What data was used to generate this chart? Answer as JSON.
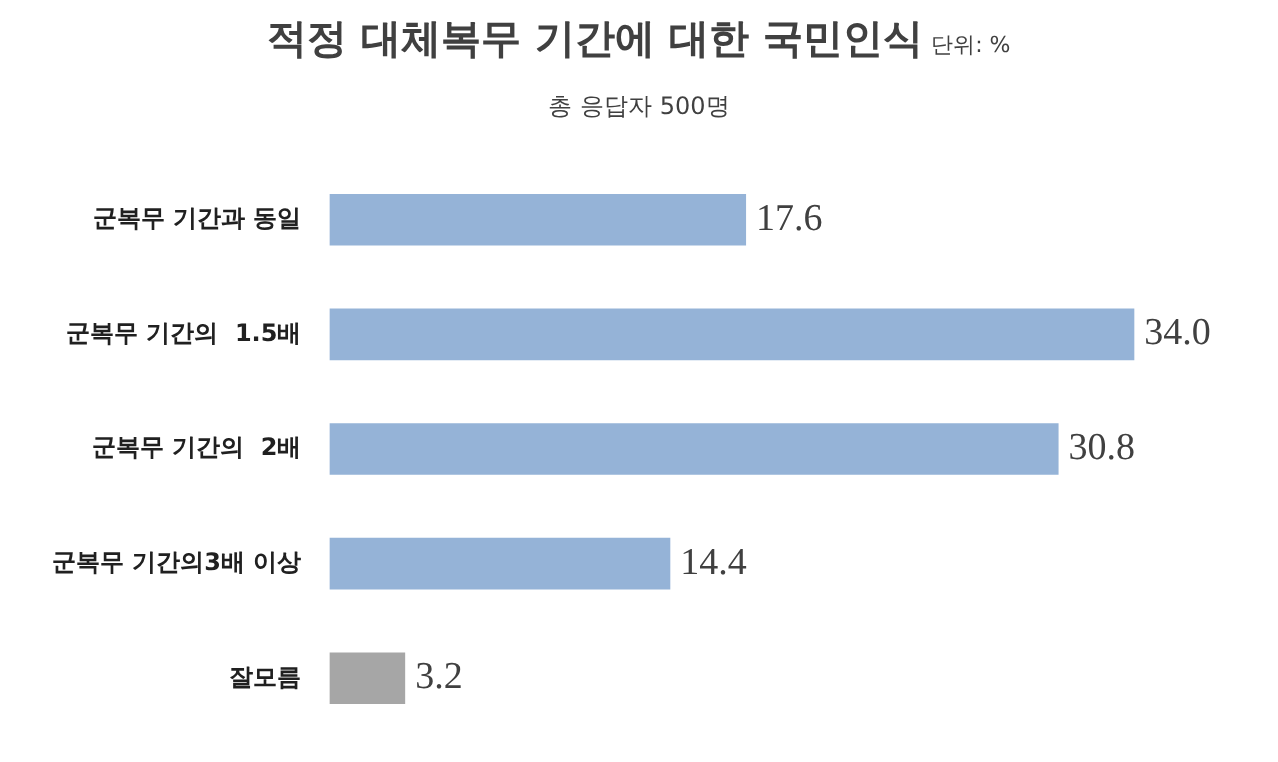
{
  "chart_data": {
    "type": "bar",
    "orientation": "horizontal",
    "title": "적정 대체복무 기간에 대한 국민인식",
    "subtitle": "총 응답자 500명",
    "annotations": [
      "단위: %"
    ],
    "categories": [
      "군복무 기간과 동일",
      "군복무 기간의  1.5배",
      "군복무 기간의  2배",
      "군복무 기간의3배 이상",
      "잘모름"
    ],
    "values": [
      17.6,
      34.0,
      30.8,
      14.4,
      3.2
    ],
    "colors": [
      "#95b3d7",
      "#95b3d7",
      "#95b3d7",
      "#95b3d7",
      "#a6a6a6"
    ],
    "value_labels": [
      "17.6",
      "34.0",
      "30.8",
      "14.4",
      "3.2"
    ],
    "tick_labels": "y",
    "grid": false,
    "legend": false
  }
}
